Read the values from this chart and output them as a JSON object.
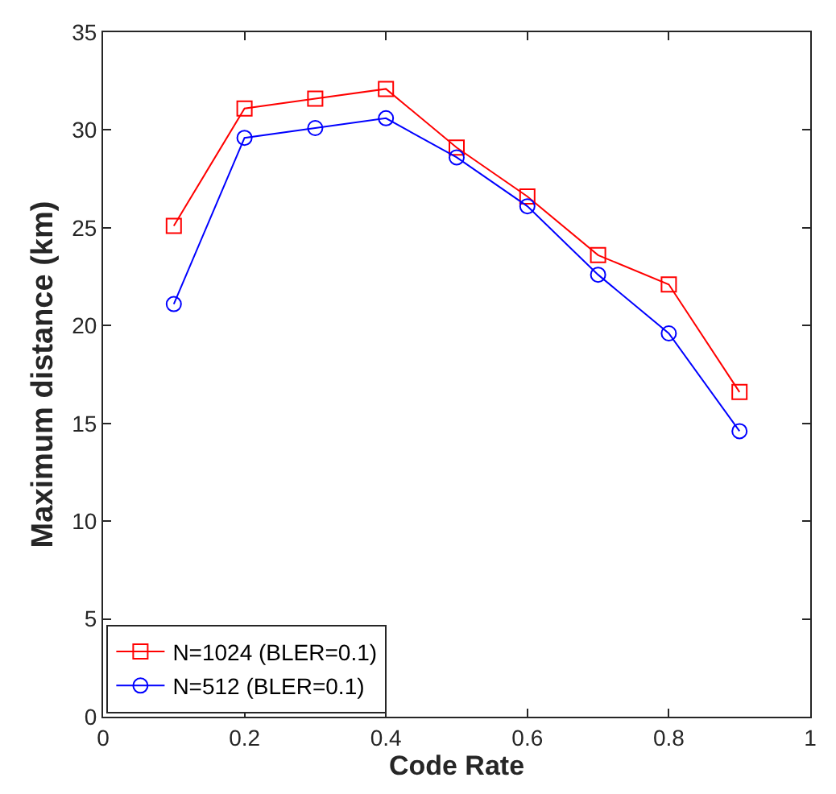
{
  "chart_data": {
    "type": "line",
    "xlabel": "Code Rate",
    "ylabel": "Maximum distance (km)",
    "x": [
      0.1,
      0.2,
      0.3,
      0.4,
      0.5,
      0.6,
      0.7,
      0.8,
      0.9
    ],
    "series": [
      {
        "name": "N=1024 (BLER=0.1)",
        "color": "#ff0000",
        "marker": "square",
        "values": [
          25.1,
          31.1,
          31.6,
          32.1,
          29.1,
          26.6,
          23.6,
          22.1,
          16.6
        ]
      },
      {
        "name": "N=512 (BLER=0.1)",
        "color": "#0000ff",
        "marker": "circle",
        "values": [
          21.1,
          29.6,
          30.1,
          30.6,
          28.6,
          26.1,
          22.6,
          19.6,
          14.6
        ]
      }
    ],
    "xlim": [
      0,
      1
    ],
    "xticks": [
      0,
      0.2,
      0.4,
      0.6,
      0.8,
      1
    ],
    "ylim": [
      0,
      35
    ],
    "yticks": [
      0,
      5,
      10,
      15,
      20,
      25,
      30,
      35
    ],
    "legend": "bottom left",
    "line_style": "solid"
  }
}
